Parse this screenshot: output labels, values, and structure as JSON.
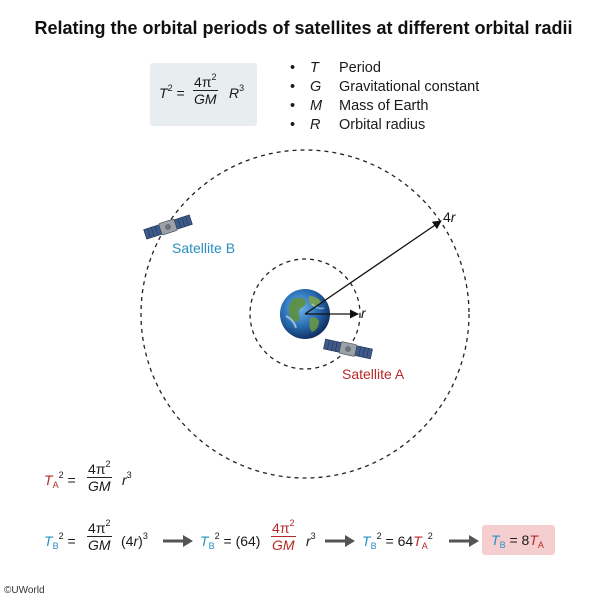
{
  "title": "Relating the orbital periods of satellites at different orbital radii",
  "formula": {
    "lhs_base": "T",
    "lhs_exp": "2",
    "equals": "=",
    "numerator": "4π",
    "numerator_exp": "2",
    "denominator": "GM",
    "rhs_base": "R",
    "rhs_exp": "3"
  },
  "legend": [
    {
      "bullet": "•",
      "symbol": "T",
      "description": "Period"
    },
    {
      "bullet": "•",
      "symbol": "G",
      "description": "Gravitational constant"
    },
    {
      "bullet": "•",
      "symbol": "M",
      "description": "Mass of Earth"
    },
    {
      "bullet": "•",
      "symbol": "R",
      "description": "Orbital radius"
    }
  ],
  "diagram": {
    "satellite_a_label": "Satellite A",
    "satellite_b_label": "Satellite B",
    "inner_radius_label": "r",
    "outer_radius_label": "4r",
    "outer_radius_coef": "4",
    "outer_radius_var": "r",
    "colors": {
      "satellite_a": "#b82828",
      "satellite_b": "#2a8fc0",
      "orbit": "#222222"
    }
  },
  "equation_a": {
    "T": "T",
    "sub": "A",
    "exp": "2",
    "eq": "=",
    "num": "4π",
    "num_exp": "2",
    "den": "GM",
    "r": "r",
    "r_exp": "3"
  },
  "equation_b": {
    "T": "T",
    "sub": "B",
    "exp": "2",
    "eq": "=",
    "num": "4π",
    "num_exp": "2",
    "den": "GM",
    "paren_open": "(",
    "coef": "4",
    "var": "r",
    "paren_close": ")",
    "paren_exp": "3",
    "step2_coef": "(64)",
    "step2_num": "4π",
    "step2_num_exp": "2",
    "step2_den": "GM",
    "step2_r": "r",
    "step2_r_exp": "3",
    "step3_coef": "64",
    "step3_T": "T",
    "step3_sub": "A",
    "step3_exp": "2",
    "answer_T": "T",
    "answer_sub": "B",
    "answer_eq": "=",
    "answer_coef": "8",
    "answer_T2": "T",
    "answer_sub2": "A"
  },
  "copyright": "©UWorld"
}
